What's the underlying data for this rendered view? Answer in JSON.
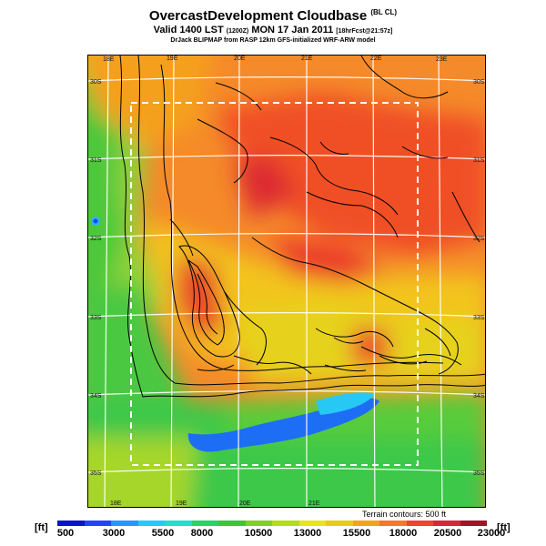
{
  "title": "OvercastDevelopment Cloudbase",
  "title_suffix": "(BL CL)",
  "valid_line": "Valid 1400 LST",
  "valid_code": "(1200Z)",
  "valid_date": "MON 17 Jan 2011",
  "valid_run": "[18hrFcst@21:57z]",
  "credit": "DrJack BLIPMAP from RASP 12km GFS-initialized WRF-ARW model",
  "lon_labels_top": [
    "18E",
    "19E",
    "20E",
    "21E",
    "22E",
    "23E"
  ],
  "lon_labels_bottom": [
    "18E",
    "19E",
    "20E",
    "21E"
  ],
  "lat_labels_left": [
    "30S",
    "31S",
    "32S",
    "33S",
    "34S",
    "35S"
  ],
  "lat_labels_right": [
    "30S",
    "31S",
    "32S",
    "33S",
    "34S",
    "35S"
  ],
  "terrain_note": "Terrain contours: 500 ft",
  "unit_left": "[ft]",
  "unit_right": "[ft]",
  "scale_labels": [
    "500",
    "3000",
    "5500",
    "8000",
    "10500",
    "13000",
    "15500",
    "18000",
    "20500",
    "23000"
  ],
  "scale_colors": [
    "#0a14c8",
    "#1e46ff",
    "#2896ff",
    "#28c8ff",
    "#28dcc8",
    "#28d264",
    "#3cc832",
    "#78d228",
    "#b4dc1e",
    "#e6e614",
    "#f0c814",
    "#f5a01e",
    "#f57828",
    "#eb4628",
    "#d2283c",
    "#a01428"
  ]
}
